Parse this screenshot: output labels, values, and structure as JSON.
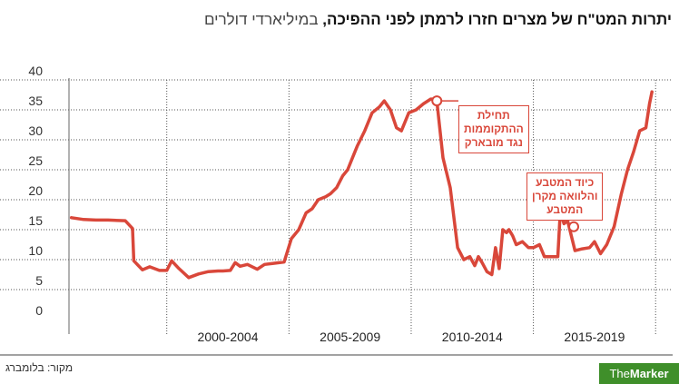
{
  "header": {
    "title": "יתרות המט\"ח של מצרים חזרו לרמתן לפני ההפיכה",
    "separator": ",",
    "subtitle": "במיליארדי דולרים"
  },
  "footer": {
    "source": "מקור: בלומברג",
    "logo_part1": "The",
    "logo_part2": "Marker"
  },
  "annotations": [
    {
      "lines": [
        "תחילת",
        "ההתקוממות",
        "נגד מובארק"
      ]
    },
    {
      "lines": [
        "כיוד המטבע",
        "והלוואה מקרן",
        "המטבע"
      ]
    }
  ],
  "colors": {
    "line": "#d9473a",
    "grid": "#555555",
    "logo": "#3f8f2a"
  },
  "chart_data": {
    "type": "line",
    "x_unit": "year",
    "xlim": [
      1996.0,
      2020.4
    ],
    "ylim": [
      0,
      40
    ],
    "yticks": [
      0,
      5,
      10,
      15,
      20,
      25,
      30,
      35,
      40
    ],
    "grid": true,
    "categories": [
      {
        "label": "2000-2004",
        "from": 2000,
        "to": 2005
      },
      {
        "label": "2005-2009",
        "from": 2005,
        "to": 2010
      },
      {
        "label": "2010-2014",
        "from": 2010,
        "to": 2015
      },
      {
        "label": "2015-2019",
        "from": 2015,
        "to": 2020
      }
    ],
    "series": [
      {
        "x": [
          1996.1,
          1996.6,
          1997.1,
          1997.6,
          1998.3,
          1998.6,
          1998.65,
          1999.0,
          1999.3,
          1999.7,
          2000.0,
          2000.2,
          2000.5,
          2000.9,
          2001.3,
          2001.7,
          2002.1,
          2002.3,
          2002.6,
          2002.8,
          2003.0,
          2003.3,
          2003.7,
          2004.0,
          2004.4,
          2004.8,
          2005.1,
          2005.4,
          2005.7,
          2005.95,
          2006.2,
          2006.5,
          2006.7,
          2006.95,
          2007.2,
          2007.4,
          2007.6,
          2007.8,
          2008.1,
          2008.4,
          2008.7,
          2008.9,
          2009.15,
          2009.4,
          2009.6,
          2009.9,
          2010.2,
          2010.5,
          2010.8,
          2010.95,
          2011.05,
          2011.3,
          2011.6,
          2011.9,
          2012.15,
          2012.4,
          2012.6,
          2012.75,
          2012.9,
          2013.1,
          2013.3,
          2013.45,
          2013.6,
          2013.75,
          2013.9,
          2014.0,
          2014.15,
          2014.3,
          2014.55,
          2014.8,
          2015.0,
          2015.25,
          2015.45,
          2015.75,
          2016.0,
          2016.1,
          2016.25,
          2016.4,
          2016.7,
          2017.0,
          2017.3,
          2017.5,
          2017.75,
          2018.0,
          2018.3,
          2018.6,
          2018.85,
          2019.1,
          2019.35,
          2019.6,
          2019.75,
          2019.85
        ],
        "y": [
          17.0,
          16.7,
          16.6,
          16.6,
          16.5,
          15.2,
          9.8,
          8.3,
          8.8,
          8.2,
          8.2,
          9.8,
          8.5,
          7.0,
          7.6,
          8.0,
          8.1,
          8.1,
          8.2,
          9.5,
          8.9,
          9.2,
          8.4,
          9.2,
          9.4,
          9.6,
          13.5,
          15.0,
          17.8,
          18.5,
          20.0,
          20.5,
          21.0,
          22.0,
          24.0,
          25.0,
          27.0,
          29.0,
          31.5,
          34.5,
          35.5,
          36.5,
          35.0,
          32.0,
          31.5,
          34.5,
          35.0,
          36.0,
          36.8,
          36.8,
          36.5,
          27.0,
          22.0,
          12.0,
          10.0,
          10.5,
          9.0,
          10.5,
          9.5,
          8.0,
          7.5,
          12.0,
          8.5,
          15.0,
          14.5,
          15.0,
          14.0,
          12.5,
          13.0,
          12.0,
          12.0,
          12.5,
          10.5,
          10.5,
          10.5,
          18.0,
          16.0,
          16.5,
          11.5,
          11.8,
          12.0,
          13.0,
          11.0,
          12.5,
          15.5,
          21.0,
          25.0,
          28.0,
          31.5,
          32.0,
          36.0,
          38.0
        ]
      }
    ],
    "markers": [
      {
        "x": 2011.05,
        "y": 36.5
      },
      {
        "x": 2016.65,
        "y": 15.5
      }
    ]
  }
}
